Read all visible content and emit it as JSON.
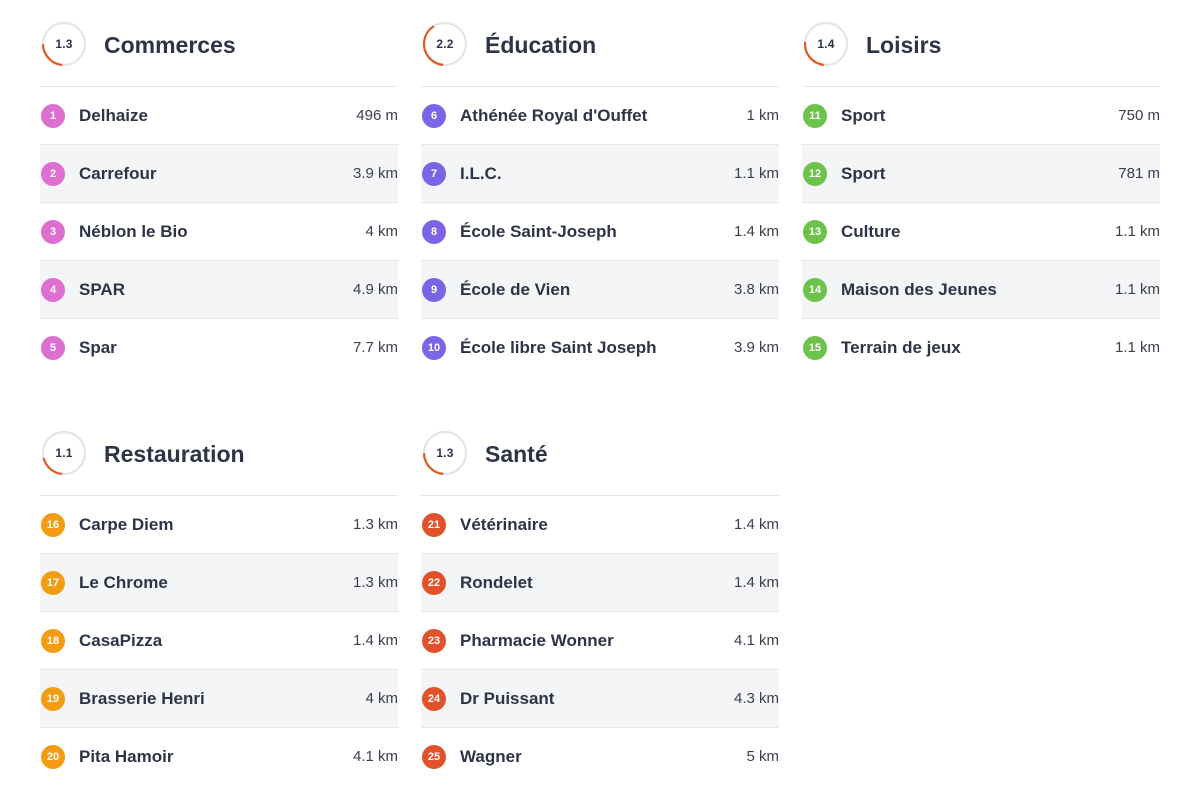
{
  "colors": {
    "commerces": "#dd6fd1",
    "education": "#7d64e6",
    "loisirs": "#6cc24a",
    "restauration": "#f39c12",
    "sante": "#e2522a"
  },
  "sections": [
    {
      "key": "commerces",
      "title": "Commerces",
      "score": "1.3",
      "score_ratio": 0.13,
      "items": [
        {
          "n": "1",
          "name": "Delhaize",
          "dist": "496 m"
        },
        {
          "n": "2",
          "name": "Carrefour",
          "dist": "3.9 km"
        },
        {
          "n": "3",
          "name": "Néblon le Bio",
          "dist": "4 km"
        },
        {
          "n": "4",
          "name": "SPAR",
          "dist": "4.9 km"
        },
        {
          "n": "5",
          "name": "Spar",
          "dist": "7.7 km"
        }
      ]
    },
    {
      "key": "education",
      "title": "Éducation",
      "score": "2.2",
      "score_ratio": 0.22,
      "items": [
        {
          "n": "6",
          "name": "Athénée Royal d'Ouffet",
          "dist": "1 km"
        },
        {
          "n": "7",
          "name": "I.L.C.",
          "dist": "1.1 km"
        },
        {
          "n": "8",
          "name": "École Saint-Joseph",
          "dist": "1.4 km"
        },
        {
          "n": "9",
          "name": "École de Vien",
          "dist": "3.8 km"
        },
        {
          "n": "10",
          "name": "École libre Saint Joseph",
          "dist": "3.9 km"
        }
      ]
    },
    {
      "key": "loisirs",
      "title": "Loisirs",
      "score": "1.4",
      "score_ratio": 0.14,
      "items": [
        {
          "n": "11",
          "name": "Sport",
          "dist": "750 m"
        },
        {
          "n": "12",
          "name": "Sport",
          "dist": "781 m"
        },
        {
          "n": "13",
          "name": "Culture",
          "dist": "1.1 km"
        },
        {
          "n": "14",
          "name": "Maison des Jeunes",
          "dist": "1.1 km"
        },
        {
          "n": "15",
          "name": "Terrain de jeux",
          "dist": "1.1 km"
        }
      ]
    },
    {
      "key": "restauration",
      "title": "Restauration",
      "score": "1.1",
      "score_ratio": 0.11,
      "items": [
        {
          "n": "16",
          "name": "Carpe Diem",
          "dist": "1.3 km"
        },
        {
          "n": "17",
          "name": "Le Chrome",
          "dist": "1.3 km"
        },
        {
          "n": "18",
          "name": "CasaPizza",
          "dist": "1.4 km"
        },
        {
          "n": "19",
          "name": "Brasserie Henri",
          "dist": "4 km"
        },
        {
          "n": "20",
          "name": "Pita Hamoir",
          "dist": "4.1 km"
        }
      ]
    },
    {
      "key": "sante",
      "title": "Santé",
      "score": "1.3",
      "score_ratio": 0.13,
      "items": [
        {
          "n": "21",
          "name": "Vétérinaire",
          "dist": "1.4 km"
        },
        {
          "n": "22",
          "name": "Rondelet",
          "dist": "1.4 km"
        },
        {
          "n": "23",
          "name": "Pharmacie Wonner",
          "dist": "4.1 km"
        },
        {
          "n": "24",
          "name": "Dr Puissant",
          "dist": "4.3 km"
        },
        {
          "n": "25",
          "name": "Wagner",
          "dist": "5 km"
        }
      ]
    }
  ]
}
